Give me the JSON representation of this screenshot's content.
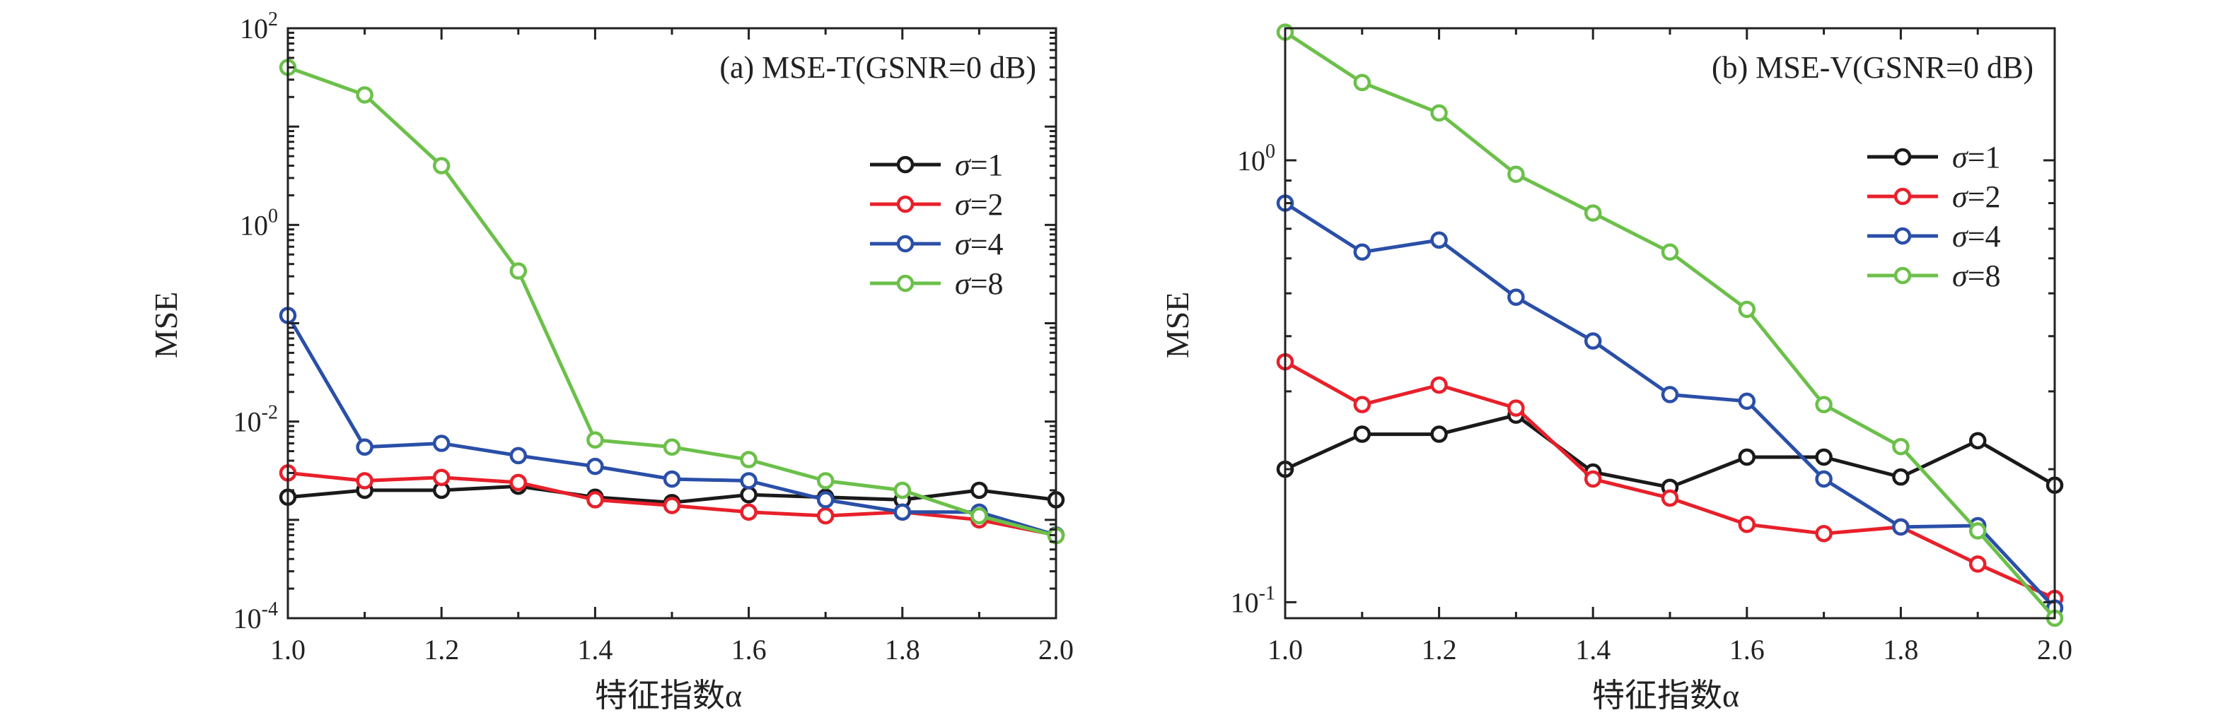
{
  "chart_data": [
    {
      "type": "line",
      "title": "(a) MSE-T(GSNR=0 dB)",
      "xlabel": "特征指数α",
      "ylabel": "MSE",
      "yscale": "log",
      "xlim": [
        1.0,
        2.0
      ],
      "ylim": [
        0.0001,
        100
      ],
      "xticks": [
        "1.0",
        "1.2",
        "1.4",
        "1.6",
        "1.8",
        "2.0"
      ],
      "yticks": [
        {
          "base": "10",
          "exp": "2"
        },
        {
          "base": "10",
          "exp": "0"
        },
        {
          "base": "10",
          "exp": "-2"
        },
        {
          "base": "10",
          "exp": "-4"
        }
      ],
      "legend_position": "upper right",
      "x": [
        1.0,
        1.1,
        1.2,
        1.3,
        1.4,
        1.5,
        1.6,
        1.7,
        1.8,
        1.9,
        2.0
      ],
      "series": [
        {
          "name": "σ=1",
          "color": "#1a1a1a",
          "values": [
            0.0017,
            0.002,
            0.002,
            0.0022,
            0.0017,
            0.0015,
            0.0018,
            0.0017,
            0.0016,
            0.002,
            0.0016
          ]
        },
        {
          "name": "σ=2",
          "color": "#e8202a",
          "values": [
            0.003,
            0.0025,
            0.0027,
            0.0024,
            0.0016,
            0.0014,
            0.0012,
            0.0011,
            0.0012,
            0.001,
            0.0007
          ]
        },
        {
          "name": "σ=4",
          "color": "#2a4fa8",
          "values": [
            0.12,
            0.0055,
            0.006,
            0.0045,
            0.0035,
            0.0026,
            0.0025,
            0.0016,
            0.0012,
            0.0012,
            0.0007
          ]
        },
        {
          "name": "σ=8",
          "color": "#6cc04a",
          "values": [
            40,
            21,
            4,
            0.34,
            0.0065,
            0.0055,
            0.0041,
            0.0025,
            0.002,
            0.0011,
            0.00069
          ]
        }
      ]
    },
    {
      "type": "line",
      "title": "(b) MSE-V(GSNR=0 dB)",
      "xlabel": "特征指数α",
      "ylabel": "MSE",
      "yscale": "log",
      "xlim": [
        1.0,
        2.0
      ],
      "ylim": [
        0.092,
        1.99
      ],
      "xticks": [
        "1.0",
        "1.2",
        "1.4",
        "1.6",
        "1.8",
        "2.0"
      ],
      "yticks": [
        {
          "base": "10",
          "exp": "0"
        },
        {
          "base": "10",
          "exp": "-1"
        }
      ],
      "legend_position": "upper right",
      "x": [
        1.0,
        1.1,
        1.2,
        1.3,
        1.4,
        1.5,
        1.6,
        1.7,
        1.8,
        1.9,
        2.0
      ],
      "series": [
        {
          "name": "σ=1",
          "color": "#1a1a1a",
          "values": [
            0.2,
            0.24,
            0.24,
            0.265,
            0.197,
            0.182,
            0.213,
            0.213,
            0.192,
            0.232,
            0.184
          ]
        },
        {
          "name": "σ=2",
          "color": "#e8202a",
          "values": [
            0.35,
            0.28,
            0.31,
            0.275,
            0.19,
            0.172,
            0.15,
            0.143,
            0.148,
            0.122,
            0.102
          ]
        },
        {
          "name": "σ=4",
          "color": "#2a4fa8",
          "values": [
            0.8,
            0.62,
            0.66,
            0.49,
            0.39,
            0.295,
            0.285,
            0.19,
            0.148,
            0.149,
            0.097
          ]
        },
        {
          "name": "σ=8",
          "color": "#6cc04a",
          "values": [
            1.95,
            1.5,
            1.28,
            0.93,
            0.76,
            0.62,
            0.46,
            0.28,
            0.225,
            0.145,
            0.092
          ]
        }
      ]
    }
  ]
}
